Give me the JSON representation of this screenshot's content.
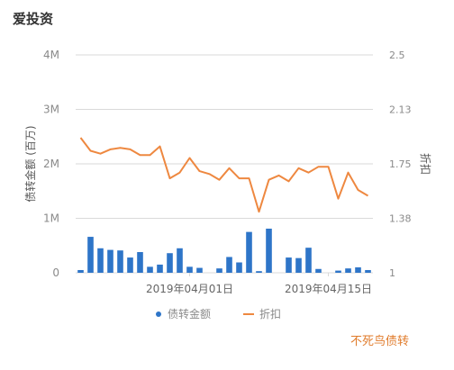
{
  "brand": "爱投资",
  "footer": "不死鸟债转",
  "colors": {
    "bar": "#2e75c8",
    "line": "#ee8840",
    "grid": "#d9d9d9",
    "axis_text": "#8a8a8a"
  },
  "chart_data": {
    "type": "bar",
    "ylabel_left": "债转金额 (百万)",
    "ylabel_right": "折扣",
    "ylim_left": [
      0,
      4000000
    ],
    "ylim_right": [
      1,
      2.5
    ],
    "left_ticks": [
      "0",
      "1M",
      "2M",
      "3M",
      "4M"
    ],
    "right_ticks": [
      "1",
      "1.38",
      "1.75",
      "2.13",
      "2.5"
    ],
    "x_tick_labels": [
      "2019年04月01日",
      "2019年04月15日"
    ],
    "x_tick_index": [
      11,
      25
    ],
    "grid": true,
    "legend_position": "bottom",
    "series": [
      {
        "name": "债转金额",
        "type": "bar",
        "values": [
          50000,
          660000,
          450000,
          420000,
          410000,
          280000,
          380000,
          110000,
          150000,
          360000,
          450000,
          110000,
          90000,
          0,
          80000,
          290000,
          190000,
          750000,
          30000,
          810000,
          0,
          280000,
          270000,
          460000,
          70000,
          0,
          40000,
          80000,
          100000,
          50000
        ]
      },
      {
        "name": "折扣",
        "type": "line",
        "values": [
          1.93,
          1.84,
          1.82,
          1.85,
          1.86,
          1.85,
          1.81,
          1.81,
          1.87,
          1.65,
          1.69,
          1.79,
          1.7,
          1.68,
          1.64,
          1.72,
          1.65,
          1.65,
          1.42,
          1.64,
          1.67,
          1.63,
          1.72,
          1.69,
          1.73,
          1.73,
          1.51,
          1.69,
          1.57,
          1.53
        ]
      }
    ]
  }
}
